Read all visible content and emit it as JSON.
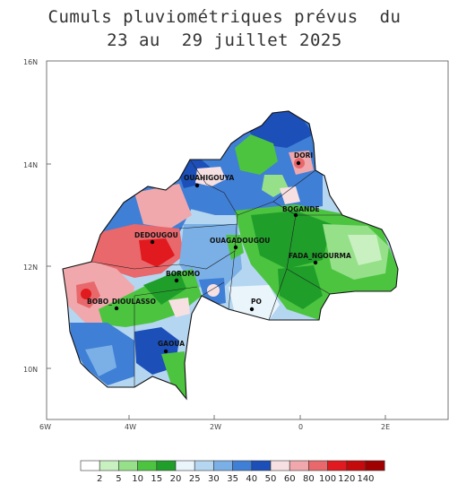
{
  "title": {
    "line1": "Cumuls pluviométriques prévus  du",
    "line2": "23 au  29 juillet 2025"
  },
  "axes": {
    "lon_ticks": [
      "6W",
      "4W",
      "2W",
      "0",
      "2E"
    ],
    "lat_ticks": [
      "16N",
      "14N",
      "12N",
      "10N"
    ]
  },
  "cities": [
    {
      "name": "DORI"
    },
    {
      "name": "OUAHIGOUYA"
    },
    {
      "name": "BOGANDE"
    },
    {
      "name": "DEDOUGOU"
    },
    {
      "name": "OUAGADOUGOU"
    },
    {
      "name": "FADA_NGOURMA"
    },
    {
      "name": "BOROMO"
    },
    {
      "name": "BOBO_DIOULASSO"
    },
    {
      "name": "PO"
    },
    {
      "name": "GAOUA"
    }
  ],
  "legend": {
    "labels": [
      "2",
      "5",
      "10",
      "15",
      "20",
      "25",
      "30",
      "35",
      "40",
      "50",
      "60",
      "80",
      "100",
      "120",
      "140"
    ],
    "colors": [
      "#ffffff",
      "#c8f0c0",
      "#96e08a",
      "#4cc440",
      "#1f9e2a",
      "#eaf4fb",
      "#b4d6f0",
      "#7ab0e6",
      "#3f7fd6",
      "#1c4fb8",
      "#f7e0e2",
      "#f0a8ac",
      "#e8686c",
      "#e01a1e",
      "#c40a0a",
      "#a00000"
    ]
  }
}
